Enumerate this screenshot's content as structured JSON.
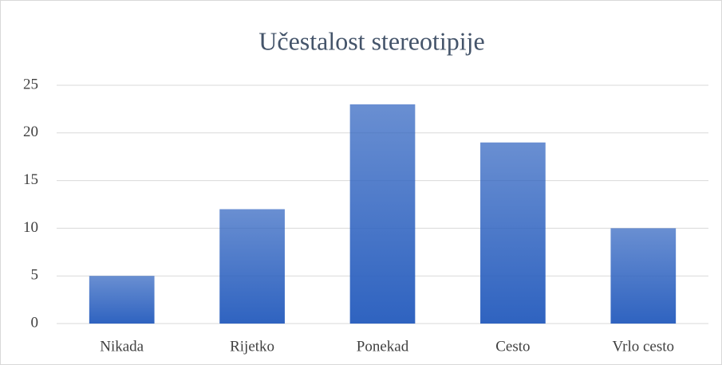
{
  "chart_data": {
    "type": "bar",
    "title": "Učestalost stereotipije",
    "categories": [
      "Nikada",
      "Rijetko",
      "Ponekad",
      "Cesto",
      "Vrlo cesto"
    ],
    "values": [
      5,
      12,
      23,
      19,
      10
    ],
    "color": "#2f63c0",
    "ylim": [
      0,
      25
    ],
    "yticks": [
      0,
      5,
      10,
      15,
      20,
      25
    ],
    "grid": true
  }
}
